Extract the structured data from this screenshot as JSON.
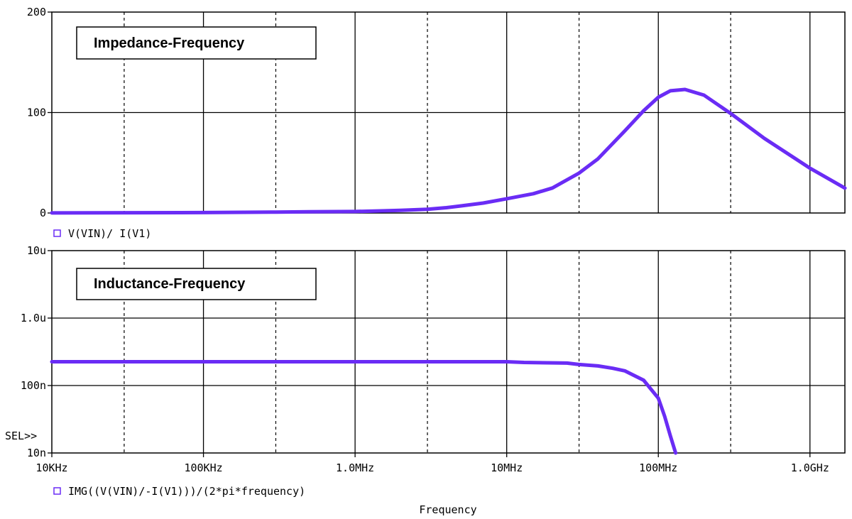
{
  "chart_data": [
    {
      "type": "line",
      "annotation": "Impedance-Frequency",
      "xscale": "log",
      "xlim": [
        10000,
        1700000000
      ],
      "ylim": [
        0,
        200
      ],
      "yticks": [
        {
          "value": 0,
          "label": "0"
        },
        {
          "value": 100,
          "label": "100"
        },
        {
          "value": 200,
          "label": "200"
        }
      ],
      "grid": true,
      "legend": {
        "color": "#6a2cf5",
        "label": "V(VIN)/ I(V1)"
      },
      "series": [
        {
          "color": "#6a2cf5",
          "x": [
            10000,
            100000,
            300000,
            500000,
            1000000,
            1500000,
            2000000,
            3000000,
            4000000,
            5000000,
            7000000,
            10000000,
            15000000,
            20000000,
            30000000,
            40000000,
            60000000,
            80000000,
            100000000,
            120000000,
            150000000,
            200000000,
            300000000,
            500000000,
            1000000000,
            1700000000
          ],
          "y": [
            0.1,
            0.4,
            0.9,
            1.2,
            1.5,
            2.1,
            2.6,
            3.7,
            5.3,
            7.1,
            9.9,
            14.2,
            19.2,
            24.9,
            39.7,
            53.9,
            81.6,
            101.8,
            115.2,
            121.6,
            123.0,
            117.3,
            99.1,
            74.3,
            44.6,
            24.8
          ]
        }
      ]
    },
    {
      "type": "line",
      "annotation": "Inductance-Frequency",
      "xscale": "log",
      "yscale": "log",
      "xlim": [
        10000,
        1700000000
      ],
      "ylim": [
        1e-08,
        1e-05
      ],
      "yticks": [
        {
          "value": 1e-08,
          "label": "10n"
        },
        {
          "value": 1e-07,
          "label": "100n"
        },
        {
          "value": 1e-06,
          "label": "1.0u"
        },
        {
          "value": 1e-05,
          "label": "10u"
        }
      ],
      "xticks": [
        {
          "value": 10000,
          "label": "10KHz"
        },
        {
          "value": 100000,
          "label": "100KHz"
        },
        {
          "value": 1000000,
          "label": "1.0MHz"
        },
        {
          "value": 10000000,
          "label": "10MHz"
        },
        {
          "value": 100000000,
          "label": "100MHz"
        },
        {
          "value": 1000000000,
          "label": "1.0GHz"
        }
      ],
      "xlabel": "Frequency",
      "marker": "SEL>>",
      "grid": true,
      "legend": {
        "color": "#6a2cf5",
        "label": "IMG((V(VIN)/-I(V1)))/(2*pi*frequency)"
      },
      "series": [
        {
          "color": "#6a2cf5",
          "x": [
            10000,
            1000000,
            10000000,
            13000000,
            25000000,
            30000000,
            40000000,
            50000000,
            60000000,
            80000000,
            100000000,
            110000000,
            120000000,
            130000000
          ],
          "y": [
            2.25e-07,
            2.25e-07,
            2.25e-07,
            2.2e-07,
            2.15e-07,
            2.05e-07,
            1.95e-07,
            1.8e-07,
            1.65e-07,
            1.2e-07,
            6.5e-08,
            3.5e-08,
            1.8e-08,
            1e-08
          ]
        }
      ]
    }
  ]
}
